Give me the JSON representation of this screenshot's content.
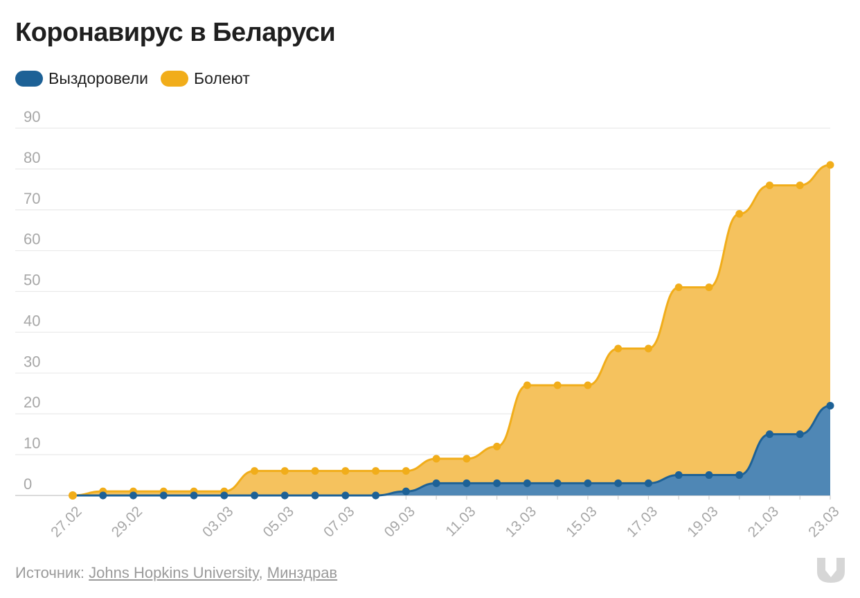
{
  "title": "Коронавирус в Беларуси",
  "legend": {
    "recovered": "Выздоровели",
    "sick": "Болеют"
  },
  "source": {
    "prefix": "Источник: ",
    "link1": "Johns Hopkins University",
    "separator": ", ",
    "link2": "Минздрав"
  },
  "colors": {
    "recovered": "#1d6196",
    "recovered_fill": "#4f87b5",
    "sick": "#f1ad1a",
    "sick_fill": "#f5c25e"
  },
  "chart_data": {
    "type": "area",
    "x": [
      "27.02",
      "28.02",
      "29.02",
      "01.03",
      "02.03",
      "03.03",
      "04.03",
      "05.03",
      "06.03",
      "07.03",
      "08.03",
      "09.03",
      "10.03",
      "11.03",
      "12.03",
      "13.03",
      "14.03",
      "15.03",
      "16.03",
      "17.03",
      "18.03",
      "19.03",
      "20.03",
      "21.03",
      "22.03",
      "23.03"
    ],
    "x_tick_labels": [
      "27.02",
      "29.02",
      "03.03",
      "05.03",
      "07.03",
      "09.03",
      "11.03",
      "13.03",
      "15.03",
      "17.03",
      "19.03",
      "21.03",
      "23.03"
    ],
    "y_ticks": [
      0,
      10,
      20,
      30,
      40,
      50,
      60,
      70,
      80,
      90
    ],
    "ylim": [
      0,
      90
    ],
    "grid": true,
    "legend_position": "top-left",
    "series": [
      {
        "name": "Болеют",
        "values": [
          0,
          1,
          1,
          1,
          1,
          1,
          6,
          6,
          6,
          6,
          6,
          6,
          9,
          9,
          12,
          27,
          27,
          27,
          36,
          36,
          51,
          51,
          69,
          76,
          76,
          81
        ]
      },
      {
        "name": "Выздоровели",
        "values": [
          0,
          0,
          0,
          0,
          0,
          0,
          0,
          0,
          0,
          0,
          0,
          1,
          3,
          3,
          3,
          3,
          3,
          3,
          3,
          3,
          5,
          5,
          5,
          15,
          15,
          22
        ]
      }
    ]
  }
}
